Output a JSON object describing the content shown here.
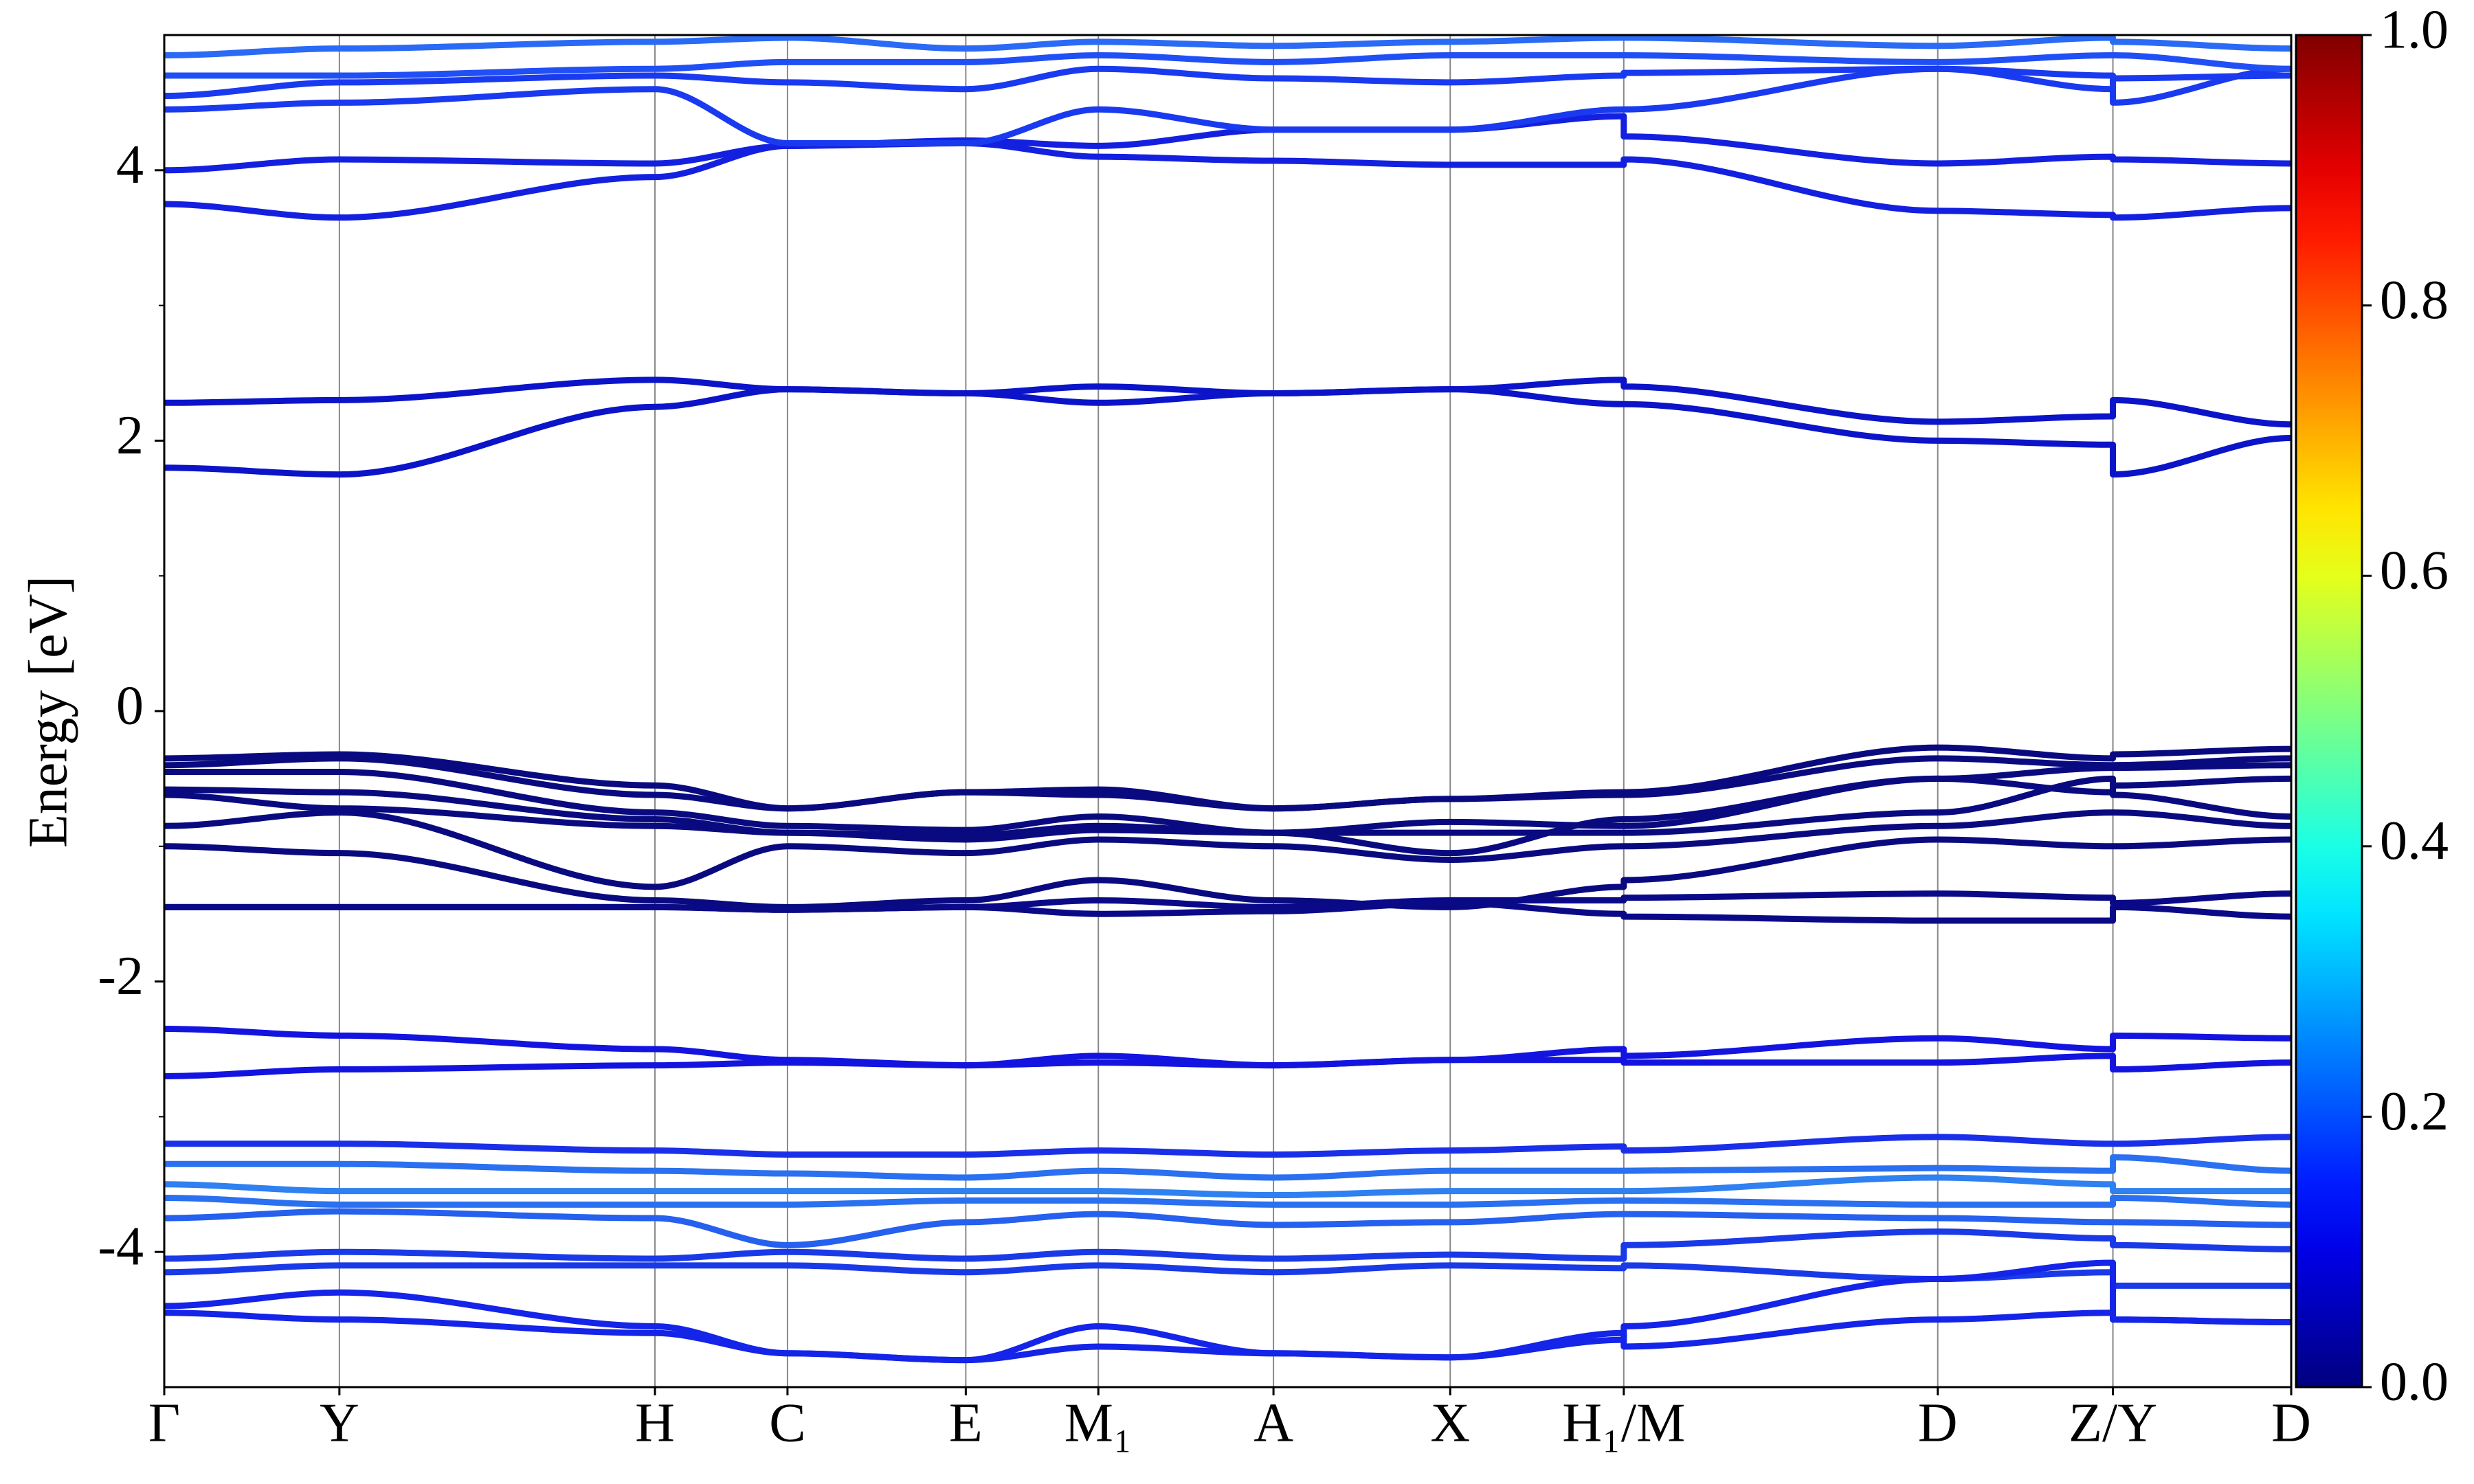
{
  "chart_data": {
    "type": "line",
    "y_label": "Energy [eV]",
    "x": [
      0,
      0.111,
      0.311,
      0.395,
      0.508,
      0.592,
      0.703,
      0.815,
      0.925,
      0.925,
      1.124,
      1.235,
      1.235,
      1.348
    ],
    "xlim": [
      0,
      1.348
    ],
    "xticks": [
      {
        "value": 0,
        "label": "Γ"
      },
      {
        "value": 0.111,
        "label": "Y"
      },
      {
        "value": 0.311,
        "label": "H"
      },
      {
        "value": 0.395,
        "label": "C"
      },
      {
        "value": 0.508,
        "label": "E"
      },
      {
        "value": 0.592,
        "label": "M₁"
      },
      {
        "value": 0.703,
        "label": "A"
      },
      {
        "value": 0.815,
        "label": "X"
      },
      {
        "value": 0.925,
        "label": "H₁/M"
      },
      {
        "value": 1.124,
        "label": "D"
      },
      {
        "value": 1.235,
        "label": "Z/Y"
      },
      {
        "value": 1.348,
        "label": "D"
      }
    ],
    "ylim": [
      -5,
      5
    ],
    "yticks": [
      -4,
      -2,
      0,
      2,
      4
    ],
    "yminorticks": [
      -3,
      -1,
      1,
      3
    ],
    "grid": "x",
    "bands": [
      {
        "color": "#0b14c8",
        "values": [
          1.8,
          1.75,
          2.25,
          2.38,
          2.35,
          2.28,
          2.35,
          2.38,
          2.27,
          2.27,
          2.0,
          1.97,
          1.75,
          2.02
        ]
      },
      {
        "color": "#0b14c8",
        "values": [
          2.28,
          2.3,
          2.45,
          2.38,
          2.35,
          2.4,
          2.35,
          2.38,
          2.45,
          2.4,
          2.14,
          2.18,
          2.3,
          2.12
        ]
      },
      {
        "color": "#1420e0",
        "values": [
          3.75,
          3.65,
          3.95,
          4.18,
          4.2,
          4.1,
          4.07,
          4.04,
          4.04,
          4.08,
          3.7,
          3.67,
          3.65,
          3.72
        ]
      },
      {
        "color": "#1420e0",
        "values": [
          4.0,
          4.08,
          4.05,
          4.18,
          4.22,
          4.18,
          4.3,
          4.3,
          4.4,
          4.25,
          4.05,
          4.1,
          4.08,
          4.05
        ]
      },
      {
        "color": "#1a3af0",
        "values": [
          4.45,
          4.5,
          4.6,
          4.2,
          4.2,
          4.45,
          4.3,
          4.3,
          4.45,
          4.45,
          4.75,
          4.7,
          4.5,
          4.75
        ]
      },
      {
        "color": "#1a3af0",
        "values": [
          4.55,
          4.65,
          4.7,
          4.65,
          4.6,
          4.75,
          4.68,
          4.65,
          4.7,
          4.72,
          4.75,
          4.6,
          4.68,
          4.7
        ]
      },
      {
        "color": "#2050f5",
        "values": [
          4.7,
          4.7,
          4.75,
          4.8,
          4.8,
          4.85,
          4.8,
          4.85,
          4.85,
          4.85,
          4.8,
          4.85,
          4.85,
          4.75
        ]
      },
      {
        "color": "#2a6af5",
        "values": [
          4.85,
          4.9,
          4.95,
          4.98,
          4.9,
          4.95,
          4.92,
          4.95,
          4.98,
          4.98,
          4.92,
          4.98,
          4.95,
          4.9
        ]
      },
      {
        "color": "#0a0a80",
        "values": [
          -0.35,
          -0.32,
          -0.55,
          -0.72,
          -0.6,
          -0.58,
          -0.72,
          -0.65,
          -0.6,
          -0.6,
          -0.27,
          -0.35,
          -0.32,
          -0.28
        ]
      },
      {
        "color": "#0a0a80",
        "values": [
          -0.4,
          -0.35,
          -0.62,
          -0.72,
          -0.6,
          -0.62,
          -0.72,
          -0.65,
          -0.62,
          -0.62,
          -0.35,
          -0.4,
          -0.4,
          -0.35
        ]
      },
      {
        "color": "#0a0a80",
        "values": [
          -0.45,
          -0.45,
          -0.75,
          -0.85,
          -0.88,
          -0.78,
          -0.9,
          -1.05,
          -0.8,
          -0.8,
          -0.5,
          -0.42,
          -0.42,
          -0.4
        ]
      },
      {
        "color": "#0a0a80",
        "values": [
          -0.58,
          -0.6,
          -0.8,
          -0.9,
          -0.92,
          -0.85,
          -0.9,
          -0.82,
          -0.85,
          -0.85,
          -0.5,
          -0.6,
          -0.55,
          -0.5
        ]
      },
      {
        "color": "#0a0a80",
        "values": [
          -0.62,
          -0.72,
          -0.85,
          -0.9,
          -0.95,
          -0.88,
          -0.9,
          -0.9,
          -0.9,
          -0.9,
          -0.75,
          -0.5,
          -0.62,
          -0.78
        ]
      },
      {
        "color": "#0a0a80",
        "values": [
          -0.85,
          -0.75,
          -1.3,
          -1.0,
          -1.05,
          -0.95,
          -1.0,
          -1.1,
          -1.0,
          -1.0,
          -0.85,
          -0.75,
          -0.75,
          -0.85
        ]
      },
      {
        "color": "#0a0a80",
        "values": [
          -1.0,
          -1.05,
          -1.4,
          -1.45,
          -1.4,
          -1.25,
          -1.4,
          -1.45,
          -1.3,
          -1.25,
          -0.95,
          -1.0,
          -1.0,
          -0.95
        ]
      },
      {
        "color": "#0a0a88",
        "values": [
          -1.45,
          -1.45,
          -1.45,
          -1.47,
          -1.45,
          -1.4,
          -1.45,
          -1.4,
          -1.4,
          -1.38,
          -1.35,
          -1.38,
          -1.42,
          -1.35
        ]
      },
      {
        "color": "#0a0a88",
        "values": [
          -1.45,
          -1.45,
          -1.45,
          -1.47,
          -1.45,
          -1.5,
          -1.48,
          -1.42,
          -1.5,
          -1.52,
          -1.55,
          -1.55,
          -1.45,
          -1.52
        ]
      },
      {
        "color": "#1414e0",
        "values": [
          -2.35,
          -2.4,
          -2.5,
          -2.58,
          -2.62,
          -2.55,
          -2.62,
          -2.58,
          -2.5,
          -2.55,
          -2.42,
          -2.5,
          -2.4,
          -2.42
        ]
      },
      {
        "color": "#1414e0",
        "values": [
          -2.7,
          -2.65,
          -2.62,
          -2.6,
          -2.62,
          -2.6,
          -2.62,
          -2.58,
          -2.58,
          -2.6,
          -2.6,
          -2.55,
          -2.65,
          -2.6
        ]
      },
      {
        "color": "#1a30e8",
        "values": [
          -3.2,
          -3.2,
          -3.25,
          -3.28,
          -3.28,
          -3.25,
          -3.28,
          -3.25,
          -3.22,
          -3.25,
          -3.15,
          -3.2,
          -3.2,
          -3.15
        ]
      },
      {
        "color": "#2a70f0",
        "values": [
          -3.35,
          -3.35,
          -3.4,
          -3.42,
          -3.45,
          -3.4,
          -3.45,
          -3.4,
          -3.4,
          -3.4,
          -3.38,
          -3.4,
          -3.3,
          -3.4
        ]
      },
      {
        "color": "#2f80f0",
        "values": [
          -3.5,
          -3.55,
          -3.55,
          -3.55,
          -3.55,
          -3.55,
          -3.58,
          -3.55,
          -3.55,
          -3.55,
          -3.45,
          -3.5,
          -3.55,
          -3.55
        ]
      },
      {
        "color": "#2a70f0",
        "values": [
          -3.6,
          -3.65,
          -3.65,
          -3.65,
          -3.62,
          -3.62,
          -3.65,
          -3.65,
          -3.62,
          -3.62,
          -3.65,
          -3.65,
          -3.6,
          -3.65
        ]
      },
      {
        "color": "#2560ee",
        "values": [
          -3.75,
          -3.7,
          -3.75,
          -3.95,
          -3.78,
          -3.72,
          -3.8,
          -3.78,
          -3.72,
          -3.72,
          -3.75,
          -3.78,
          -3.78,
          -3.8
        ]
      },
      {
        "color": "#1a3ae8",
        "values": [
          -4.05,
          -4.0,
          -4.05,
          -4.0,
          -4.05,
          -4.0,
          -4.05,
          -4.02,
          -4.05,
          -3.95,
          -3.85,
          -3.9,
          -3.95,
          -3.98
        ]
      },
      {
        "color": "#1a3ae8",
        "values": [
          -4.15,
          -4.1,
          -4.1,
          -4.1,
          -4.15,
          -4.1,
          -4.15,
          -4.1,
          -4.12,
          -4.1,
          -4.2,
          -4.15,
          -4.25,
          -4.25
        ]
      },
      {
        "color": "#1424e8",
        "values": [
          -4.4,
          -4.3,
          -4.55,
          -4.75,
          -4.8,
          -4.55,
          -4.75,
          -4.78,
          -4.65,
          -4.55,
          -4.2,
          -4.08,
          -4.5,
          -4.52
        ]
      },
      {
        "color": "#1424e8",
        "values": [
          -4.45,
          -4.5,
          -4.6,
          -4.75,
          -4.8,
          -4.7,
          -4.75,
          -4.78,
          -4.6,
          -4.7,
          -4.5,
          -4.45,
          -4.5,
          -4.52
        ]
      }
    ],
    "colorbar": {
      "colormap": "jet",
      "lim": [
        0,
        1
      ],
      "ticks": [
        {
          "value": 0,
          "label": "0.0"
        },
        {
          "value": 0.2,
          "label": "0.2"
        },
        {
          "value": 0.4,
          "label": "0.4"
        },
        {
          "value": 0.6,
          "label": "0.6"
        },
        {
          "value": 0.8,
          "label": "0.8"
        },
        {
          "value": 1,
          "label": "1.0"
        }
      ]
    }
  }
}
